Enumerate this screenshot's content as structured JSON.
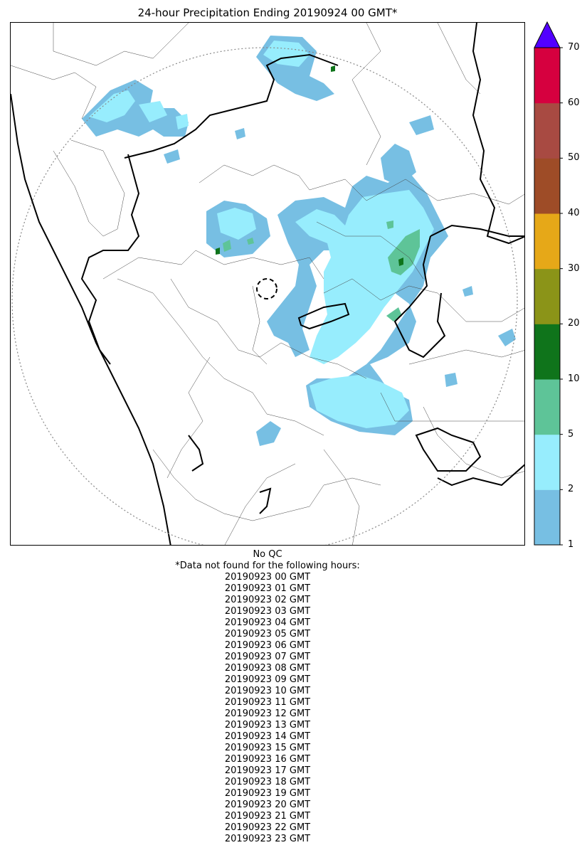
{
  "title": "24-hour Precipitation Ending 20190924 00 GMT*",
  "colorbar": {
    "ticks": [
      "1",
      "2",
      "5",
      "10",
      "20",
      "30",
      "40",
      "50",
      "60",
      "70"
    ],
    "colors": [
      "#77bfe3",
      "#97edfd",
      "#5ec498",
      "#0f741b",
      "#8b9418",
      "#e6a818",
      "#9e4c27",
      "#a84a42",
      "#d6003f"
    ],
    "extend_color": "#5200ff"
  },
  "notes": {
    "qc": "No QC",
    "missing_header": "*Data not found for the following hours:",
    "missing_hours": [
      "20190923 00 GMT",
      "20190923 01 GMT",
      "20190923 02 GMT",
      "20190923 03 GMT",
      "20190923 04 GMT",
      "20190923 05 GMT",
      "20190923 06 GMT",
      "20190923 07 GMT",
      "20190923 08 GMT",
      "20190923 09 GMT",
      "20190923 10 GMT",
      "20190923 11 GMT",
      "20190923 12 GMT",
      "20190923 13 GMT",
      "20190923 14 GMT",
      "20190923 15 GMT",
      "20190923 16 GMT",
      "20190923 17 GMT",
      "20190923 18 GMT",
      "20190923 19 GMT",
      "20190923 20 GMT",
      "20190923 21 GMT",
      "20190923 22 GMT",
      "20190923 23 GMT"
    ]
  }
}
